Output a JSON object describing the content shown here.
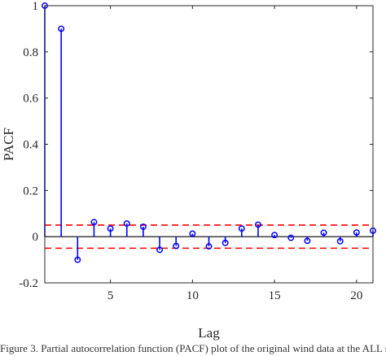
{
  "chart_data": {
    "type": "stem",
    "xlabel": "Lag",
    "ylabel": "PACF",
    "xlim": [
      1,
      21
    ],
    "ylim": [
      -0.2,
      1
    ],
    "xticks": [
      5,
      10,
      15,
      20
    ],
    "yticks": [
      -0.2,
      0,
      0.2,
      0.4,
      0.6,
      0.8,
      1
    ],
    "ytick_labels": [
      "-0.2",
      "0",
      "0.2",
      "0.4",
      "0.6",
      "0.8",
      "1"
    ],
    "grid": false,
    "lags": [
      1,
      2,
      3,
      4,
      5,
      6,
      7,
      8,
      9,
      10,
      11,
      12,
      13,
      14,
      15,
      16,
      17,
      18,
      19,
      20,
      21
    ],
    "values": [
      1.0,
      0.9,
      -0.1,
      0.063,
      0.035,
      0.057,
      0.043,
      -0.057,
      -0.04,
      0.013,
      -0.042,
      -0.027,
      0.035,
      0.052,
      0.007,
      -0.005,
      -0.018,
      0.017,
      -0.02,
      0.018,
      0.026
    ],
    "confidence_bounds": [
      0.05,
      -0.05
    ],
    "colors": {
      "stem": "#0000ff",
      "marker": "#0000ff",
      "bound": "#ff0000",
      "baseline": "#000000",
      "axis": "#262626"
    }
  },
  "caption": "Figure 3. Partial autocorrelation function (PACF) plot of the original wind data at the ALL si"
}
